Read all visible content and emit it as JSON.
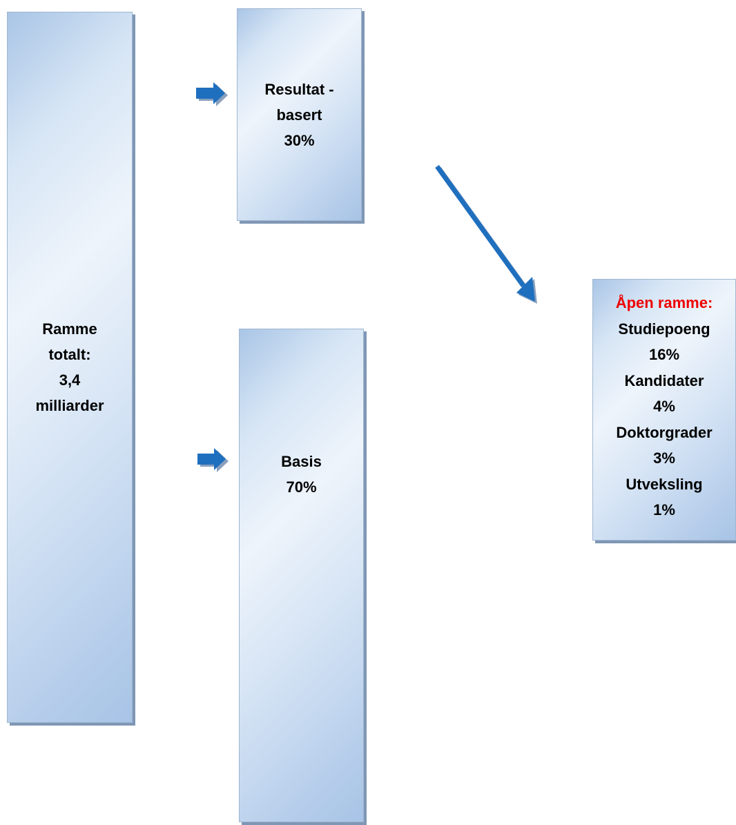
{
  "total": {
    "lines": [
      "Ramme",
      "totalt:",
      "3,4",
      "milliarder"
    ]
  },
  "result": {
    "lines": [
      "Resultat -",
      "basert",
      "30%"
    ]
  },
  "basis": {
    "lines": [
      "Basis",
      "70%"
    ]
  },
  "open": {
    "heading": "Åpen ramme:",
    "heading_color": "#ee0000",
    "items": [
      {
        "label": "Studiepoeng",
        "value": "16%"
      },
      {
        "label": "Kandidater",
        "value": "4%"
      },
      {
        "label": "Doktorgrader",
        "value": "3%"
      },
      {
        "label": "Utveksling",
        "value": "1%"
      }
    ]
  },
  "colors": {
    "arrow": "#1f6fbf",
    "arrow_shadow": "#8aa0bd",
    "box_border": "#9fb6cf"
  }
}
